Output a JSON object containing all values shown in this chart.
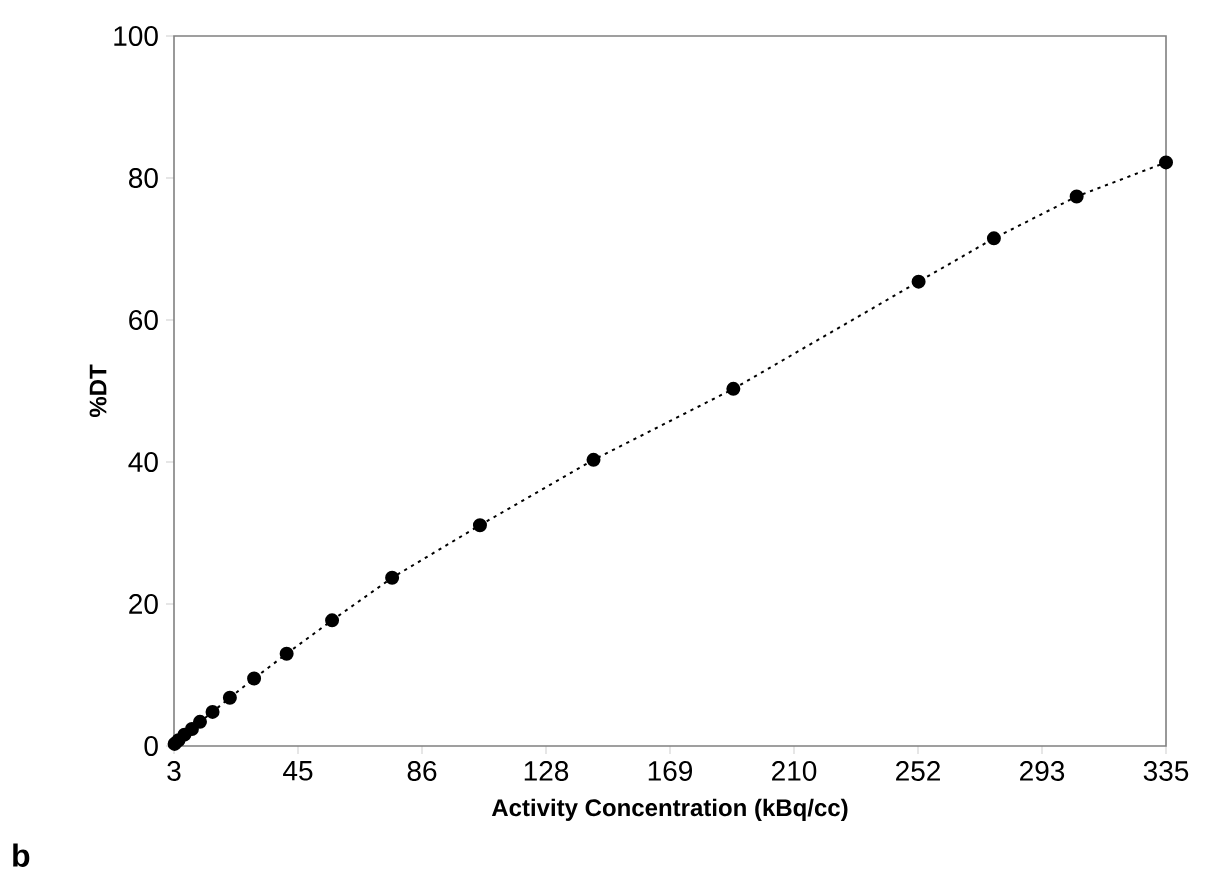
{
  "chart_data": {
    "type": "line",
    "xlabel": "Activity Concentration (kBq/cc)",
    "ylabel": "%DT",
    "x": [
      3.2,
      4.5,
      6.5,
      9,
      11.7,
      15.9,
      21.7,
      29.8,
      40.7,
      55.9,
      76,
      105.4,
      143.4,
      190.2,
      252.2,
      277.4,
      305.1,
      335
    ],
    "values": [
      0.3,
      0.8,
      1.6,
      2.4,
      3.4,
      4.8,
      6.8,
      9.5,
      13.0,
      17.7,
      23.7,
      31.1,
      40.3,
      50.3,
      65.4,
      71.5,
      77.4,
      82.2
    ],
    "color": "#000000",
    "marker": "circle",
    "line_style": "dotted",
    "xlim": [
      3,
      335
    ],
    "xticks": [
      3,
      {
        "value": 44.5,
        "label": "45"
      },
      86,
      {
        "value": 127.5,
        "label": "128"
      },
      169,
      {
        "value": 210.5,
        "label": "210"
      },
      252,
      {
        "value": 293.5,
        "label": "293"
      },
      335
    ],
    "ylim": [
      0,
      100
    ],
    "yticks": [
      0,
      20,
      40,
      60,
      80,
      100
    ],
    "grid": false,
    "annotations": [
      "b"
    ]
  }
}
